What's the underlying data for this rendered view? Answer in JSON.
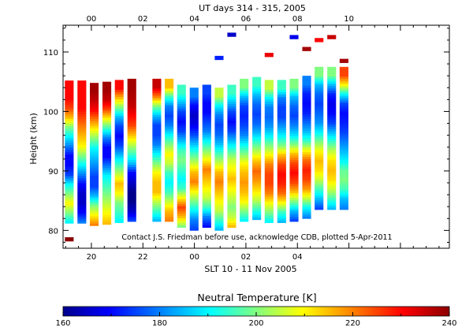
{
  "chart_data": {
    "type": "heatmap",
    "title": "UT days 314 - 315, 2005",
    "top_axis": {
      "label": "UT days 314 - 315, 2005",
      "range": [
        14.9,
        29.9
      ],
      "ticks": [
        {
          "value": 16,
          "label": "00"
        },
        {
          "value": 18,
          "label": "02"
        },
        {
          "value": 20,
          "label": "04"
        },
        {
          "value": 22,
          "label": "06"
        },
        {
          "value": 24,
          "label": "08"
        },
        {
          "value": 26,
          "label": "10"
        }
      ]
    },
    "x_axis": {
      "label": "SLT 10 - 11 Nov 2005",
      "range": [
        18.9,
        33.9
      ],
      "ticks": [
        {
          "value": 20,
          "label": "20"
        },
        {
          "value": 22,
          "label": "22"
        },
        {
          "value": 24,
          "label": "00"
        },
        {
          "value": 26,
          "label": "02"
        },
        {
          "value": 28,
          "label": "04"
        }
      ]
    },
    "y_axis": {
      "label": "Height (km)",
      "range": [
        77.0,
        114.5
      ],
      "ticks": [
        80,
        90,
        100,
        110
      ]
    },
    "annotation": "Contact J.S. Friedman before use, acknowledge CDB, plotted 5-Apr-2011",
    "colorbar": {
      "title": "Neutral Temperature [K]",
      "min": 160,
      "max": 240,
      "ticks": [
        160,
        180,
        200,
        220,
        240
      ]
    },
    "columns": [
      {
        "x": 19.14,
        "base": 81.2,
        "temps": [
          190,
          200,
          210,
          200,
          190,
          175,
          170,
          170,
          180,
          190,
          200,
          215,
          225,
          230,
          230
        ],
        "extras": [
          {
            "alt": 78.5,
            "t": 240
          }
        ]
      },
      {
        "x": 19.63,
        "base": 81.2,
        "temps": [
          180,
          170,
          165,
          165,
          170,
          180,
          190,
          200,
          210,
          215,
          220,
          225,
          230,
          230,
          230
        ],
        "extras": []
      },
      {
        "x": 20.11,
        "base": 80.8,
        "temps": [
          220,
          210,
          200,
          185,
          175,
          175,
          180,
          185,
          190,
          200,
          210,
          220,
          230,
          235,
          238
        ],
        "extras": []
      },
      {
        "x": 20.6,
        "base": 81.0,
        "temps": [
          215,
          210,
          205,
          200,
          195,
          190,
          180,
          170,
          170,
          180,
          195,
          210,
          225,
          235,
          238
        ],
        "extras": []
      },
      {
        "x": 21.08,
        "base": 81.3,
        "temps": [
          190,
          195,
          200,
          210,
          215,
          205,
          195,
          185,
          175,
          170,
          175,
          185,
          200,
          215,
          230
        ],
        "extras": []
      },
      {
        "x": 21.57,
        "base": 81.5,
        "temps": [
          175,
          165,
          160,
          160,
          165,
          170,
          185,
          195,
          205,
          215,
          225,
          230,
          235,
          237,
          238
        ],
        "extras": []
      },
      {
        "x": 22.54,
        "base": 81.5,
        "temps": [
          185,
          195,
          205,
          215,
          215,
          210,
          200,
          190,
          180,
          175,
          175,
          185,
          200,
          220,
          235
        ],
        "extras": []
      },
      {
        "x": 23.02,
        "base": 81.5,
        "temps": [
          220,
          215,
          205,
          195,
          190,
          195,
          205,
          210,
          200,
          190,
          180,
          175,
          180,
          195,
          215
        ],
        "extras": []
      },
      {
        "x": 23.5,
        "base": 80.5,
        "temps": [
          200,
          215,
          225,
          210,
          195,
          190,
          195,
          200,
          195,
          185,
          175,
          170,
          175,
          185,
          195
        ],
        "extras": []
      },
      {
        "x": 23.99,
        "base": 80.0,
        "temps": [
          175,
          180,
          190,
          200,
          210,
          220,
          215,
          205,
          195,
          185,
          175,
          168,
          165,
          170,
          180
        ],
        "extras": []
      },
      {
        "x": 24.48,
        "base": 80.5,
        "temps": [
          170,
          180,
          195,
          205,
          210,
          215,
          220,
          210,
          200,
          190,
          180,
          175,
          170,
          170,
          175
        ],
        "extras": []
      },
      {
        "x": 24.96,
        "base": 80.0,
        "temps": [
          185,
          195,
          205,
          210,
          215,
          220,
          215,
          205,
          195,
          185,
          178,
          175,
          180,
          190,
          205
        ],
        "extras": [
          {
            "alt": 109.0,
            "t": 172
          }
        ]
      },
      {
        "x": 25.45,
        "base": 80.5,
        "temps": [
          215,
          205,
          200,
          205,
          210,
          215,
          210,
          205,
          195,
          185,
          175,
          170,
          175,
          185,
          195
        ],
        "extras": [
          {
            "alt": 112.9,
            "t": 165
          }
        ]
      },
      {
        "x": 25.93,
        "base": 81.5,
        "temps": [
          190,
          200,
          210,
          215,
          218,
          215,
          210,
          200,
          190,
          180,
          175,
          172,
          175,
          185,
          200
        ],
        "extras": []
      },
      {
        "x": 26.42,
        "base": 81.8,
        "temps": [
          185,
          195,
          205,
          212,
          218,
          222,
          215,
          205,
          195,
          185,
          178,
          175,
          178,
          185,
          195
        ],
        "extras": []
      },
      {
        "x": 26.9,
        "base": 81.3,
        "temps": [
          190,
          200,
          210,
          220,
          225,
          225,
          220,
          210,
          200,
          190,
          182,
          178,
          180,
          190,
          205
        ],
        "extras": [
          {
            "alt": 109.5,
            "t": 232
          }
        ]
      },
      {
        "x": 27.39,
        "base": 81.3,
        "temps": [
          185,
          195,
          210,
          222,
          228,
          230,
          225,
          215,
          200,
          190,
          182,
          175,
          175,
          180,
          195
        ],
        "extras": []
      },
      {
        "x": 27.87,
        "base": 81.5,
        "temps": [
          175,
          185,
          200,
          215,
          225,
          230,
          225,
          215,
          200,
          188,
          180,
          175,
          178,
          185,
          200
        ],
        "extras": [
          {
            "alt": 112.5,
            "t": 168
          }
        ]
      },
      {
        "x": 28.36,
        "base": 82.0,
        "temps": [
          180,
          190,
          205,
          218,
          225,
          228,
          222,
          210,
          195,
          185,
          178,
          172,
          170,
          172,
          180
        ],
        "extras": [
          {
            "alt": 110.5,
            "t": 238
          }
        ]
      },
      {
        "x": 28.84,
        "base": 83.5,
        "temps": [
          175,
          185,
          195,
          205,
          212,
          215,
          210,
          200,
          190,
          182,
          178,
          175,
          178,
          185,
          200
        ],
        "extras": [
          {
            "alt": 112.0,
            "t": 230
          }
        ]
      },
      {
        "x": 29.33,
        "base": 83.5,
        "temps": [
          185,
          195,
          205,
          212,
          215,
          212,
          205,
          195,
          185,
          175,
          170,
          168,
          172,
          185,
          200
        ],
        "extras": [
          {
            "alt": 112.5,
            "t": 235
          }
        ]
      },
      {
        "x": 29.81,
        "base": 83.5,
        "temps": [
          180,
          185,
          195,
          200,
          198,
          190,
          185,
          180,
          175,
          172,
          170,
          175,
          190,
          210,
          225
        ],
        "extras": [
          {
            "alt": 108.5,
            "t": 238
          }
        ]
      }
    ]
  }
}
